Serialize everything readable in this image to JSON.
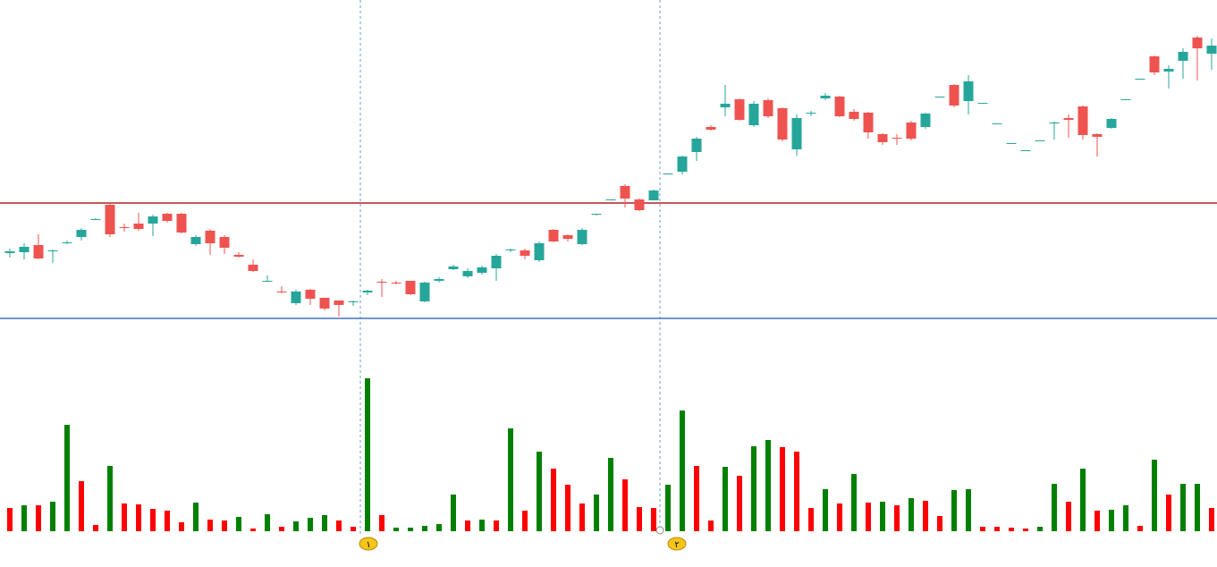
{
  "chart_data": {
    "type": "candlestick",
    "open": [
      117,
      118,
      126,
      119,
      128,
      135,
      154,
      171,
      146,
      150,
      150,
      161,
      161,
      127,
      142,
      135,
      115,
      104,
      85,
      74,
      61,
      76,
      67,
      64,
      63,
      73,
      85,
      84,
      86,
      63,
      86,
      99,
      91,
      95,
      100,
      120,
      120,
      109,
      143,
      137,
      127,
      160,
      176,
      192,
      177,
      176,
      205,
      208,
      230,
      258,
      280,
      289,
      260,
      288,
      279,
      233,
      273,
      290,
      292,
      275,
      274,
      250,
      246,
      263,
      258,
      291,
      305,
      287,
      285,
      262,
      240,
      232,
      243,
      263,
      268,
      281,
      250,
      257,
      289,
      311,
      337,
      320,
      332,
      358,
      340
    ],
    "high": [
      122,
      128,
      138,
      121,
      131,
      145,
      156,
      173,
      150,
      162,
      160,
      162,
      162,
      137,
      144,
      137,
      118,
      110,
      92,
      80,
      76,
      77,
      67,
      64,
      64,
      76,
      88,
      86,
      86,
      85,
      90,
      104,
      100,
      103,
      116,
      122,
      122,
      130,
      144,
      138,
      145,
      161,
      177,
      194,
      178,
      188,
      206,
      226,
      247,
      260,
      305,
      290,
      287,
      290,
      280,
      272,
      276,
      296,
      293,
      278,
      275,
      251,
      250,
      265,
      274,
      292,
      306,
      316,
      285,
      262,
      240,
      232,
      243,
      264,
      272,
      282,
      251,
      268,
      289,
      312,
      338,
      327,
      346,
      360,
      357
    ],
    "low": [
      112,
      110,
      110,
      106,
      127,
      131,
      154,
      135,
      141,
      142,
      136,
      151,
      139,
      125,
      115,
      116,
      112,
      96,
      85,
      72,
      59,
      59,
      53,
      46,
      58,
      70,
      68,
      82,
      70,
      62,
      84,
      98,
      89,
      93,
      86,
      118,
      110,
      107,
      129,
      130,
      126,
      159,
      176,
      168,
      164,
      176,
      205,
      205,
      220,
      254,
      270,
      265,
      258,
      268,
      242,
      226,
      270,
      288,
      269,
      265,
      245,
      238,
      238,
      243,
      256,
      291,
      280,
      272,
      285,
      262,
      240,
      232,
      243,
      244,
      246,
      244,
      225,
      256,
      289,
      311,
      316,
      301,
      312,
      310,
      322
    ],
    "close": [
      119,
      124,
      111,
      120,
      129,
      143,
      155,
      138,
      145,
      144,
      158,
      153,
      140,
      135,
      128,
      123,
      113,
      97,
      86,
      73,
      74,
      66,
      55,
      59,
      63,
      75,
      84,
      83,
      71,
      84,
      88,
      102,
      97,
      101,
      114,
      121,
      114,
      128,
      130,
      133,
      143,
      161,
      177,
      178,
      165,
      187,
      206,
      225,
      245,
      255,
      284,
      266,
      284,
      270,
      244,
      268,
      274,
      293,
      270,
      267,
      252,
      241,
      245,
      245,
      273,
      292,
      282,
      309,
      285,
      262,
      240,
      232,
      243,
      263,
      266,
      249,
      247,
      267,
      289,
      312,
      319,
      323,
      342,
      346,
      349
    ],
    "up_color": "#26a69a",
    "down_color": "#ef5350",
    "ylim": [
      0,
      400
    ],
    "hlines": [
      {
        "value": 173,
        "color": "#b22222"
      },
      {
        "value": 44,
        "color": "#4472c4"
      }
    ],
    "volume": {
      "ylim": [
        0,
        200
      ],
      "values": [
        26,
        29,
        29,
        33,
        119,
        56,
        7,
        73,
        31,
        30,
        25,
        23,
        10,
        32,
        13,
        12,
        16,
        3,
        19,
        5,
        11,
        15,
        18,
        12,
        5,
        171,
        18,
        4,
        4,
        6,
        8,
        41,
        12,
        13,
        12,
        115,
        23,
        89,
        70,
        52,
        31,
        41,
        82,
        58,
        27,
        26,
        52,
        135,
        73,
        12,
        72,
        62,
        95,
        102,
        94,
        89,
        26,
        47,
        31,
        64,
        32,
        33,
        29,
        37,
        34,
        17,
        46,
        47,
        5,
        5,
        4,
        3,
        5,
        53,
        33,
        70,
        23,
        24,
        29,
        6,
        80,
        41,
        53,
        53,
        26
      ],
      "colors": [
        "#ff0000",
        "#008000",
        "#ff0000",
        "#008000",
        "#008000",
        "#ff0000",
        "#ff0000",
        "#008000",
        "#ff0000",
        "#ff0000",
        "#ff0000",
        "#ff0000",
        "#ff0000",
        "#008000",
        "#ff0000",
        "#ff0000",
        "#008000",
        "#ff0000",
        "#008000",
        "#ff0000",
        "#008000",
        "#008000",
        "#008000",
        "#ff0000",
        "#ff0000",
        "#008000",
        "#ff0000",
        "#008000",
        "#008000",
        "#008000",
        "#008000",
        "#008000",
        "#ff0000",
        "#008000",
        "#ff0000",
        "#008000",
        "#ff0000",
        "#008000",
        "#ff0000",
        "#ff0000",
        "#ff0000",
        "#008000",
        "#008000",
        "#ff0000",
        "#ff0000",
        "#ff0000",
        "#008000",
        "#008000",
        "#ff0000",
        "#ff0000",
        "#008000",
        "#ff0000",
        "#008000",
        "#008000",
        "#ff0000",
        "#ff0000",
        "#ff0000",
        "#008000",
        "#ff0000",
        "#008000",
        "#ff0000",
        "#008000",
        "#ff0000",
        "#008000",
        "#ff0000",
        "#ff0000",
        "#008000",
        "#008000",
        "#ff0000",
        "#ff0000",
        "#ff0000",
        "#ff0000",
        "#008000",
        "#008000",
        "#ff0000",
        "#008000",
        "#ff0000",
        "#008000",
        "#008000",
        "#ff0000",
        "#008000",
        "#ff0000",
        "#008000",
        "#008000",
        "#ff0000"
      ]
    },
    "markers": [
      "١",
      "٢"
    ]
  }
}
